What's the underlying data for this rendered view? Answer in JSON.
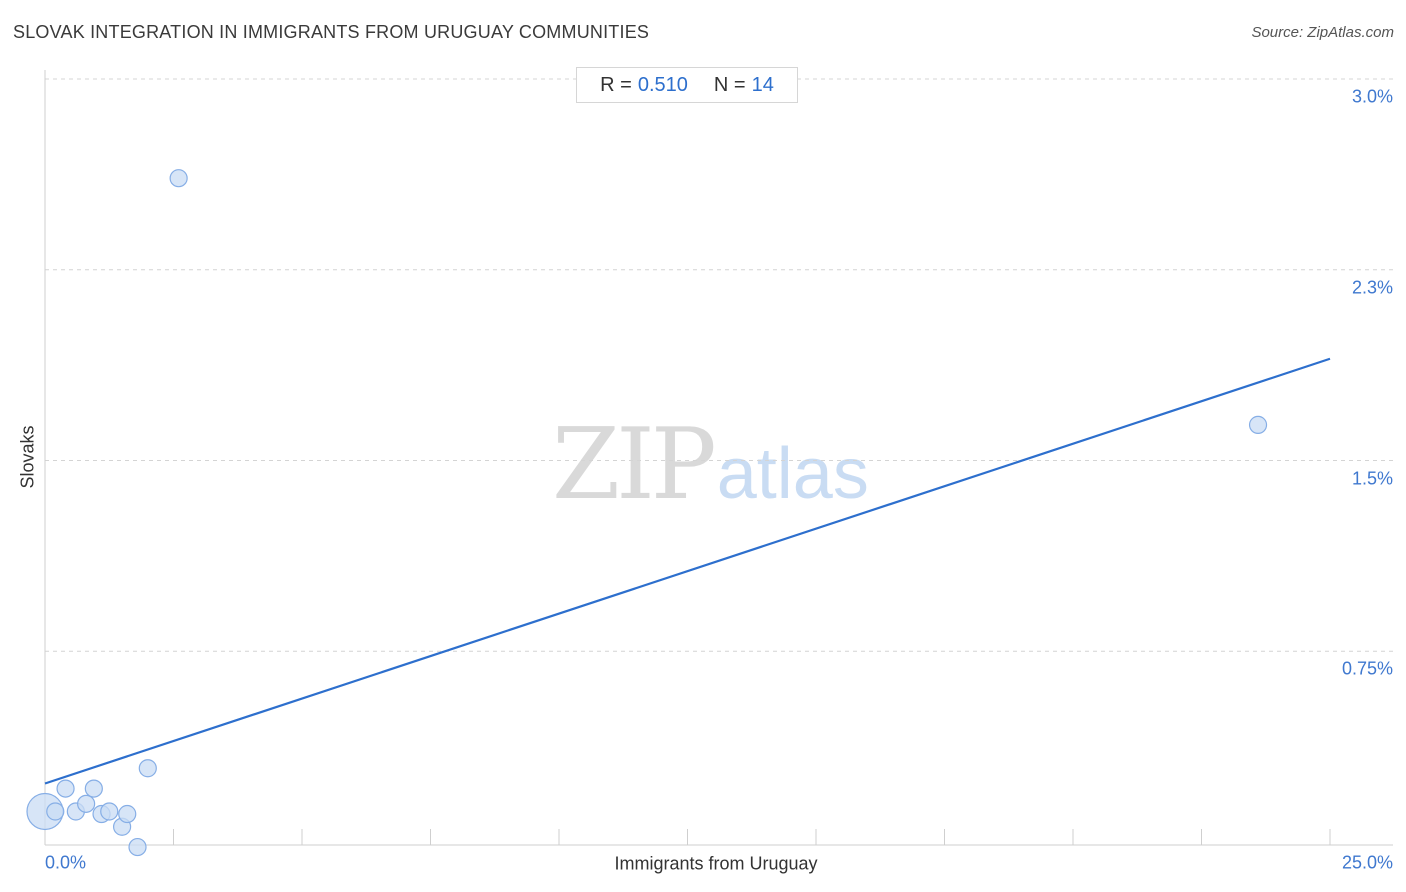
{
  "header": {
    "title": "SLOVAK INTEGRATION IN IMMIGRANTS FROM URUGUAY COMMUNITIES",
    "source": "Source: ZipAtlas.com"
  },
  "stats": {
    "r_label": "R = ",
    "r_value": "0.510",
    "n_label": "N = ",
    "n_value": "14"
  },
  "watermark": {
    "zip": "ZIP",
    "atlas": "atlas"
  },
  "colors": {
    "trend_line": "#2d6fcd",
    "point_fill": "#c9dcf4",
    "point_stroke": "#86aee6",
    "grid": "#d4d4d4",
    "tick_label": "#3f78cf"
  },
  "chart_data": {
    "type": "scatter",
    "title": "SLOVAK INTEGRATION IN IMMIGRANTS FROM URUGUAY COMMUNITIES",
    "xlabel": "Immigrants from Uruguay",
    "ylabel": "Slovaks",
    "xlim": [
      0,
      25
    ],
    "ylim": [
      0,
      3.0
    ],
    "x_tick_labels": [
      "0.0%",
      "25.0%"
    ],
    "y_ticks": [
      {
        "value": 3.0,
        "label": "3.0%"
      },
      {
        "value": 2.25,
        "label": "2.3%"
      },
      {
        "value": 1.5,
        "label": "1.5%"
      },
      {
        "value": 0.75,
        "label": "0.75%"
      }
    ],
    "grid": "horizontal dashed",
    "points": [
      {
        "x": 0.0,
        "y": 0.12,
        "size": "large"
      },
      {
        "x": 0.2,
        "y": 0.12,
        "size": "normal"
      },
      {
        "x": 0.4,
        "y": 0.21,
        "size": "normal"
      },
      {
        "x": 0.6,
        "y": 0.12,
        "size": "normal"
      },
      {
        "x": 0.8,
        "y": 0.15,
        "size": "normal"
      },
      {
        "x": 0.95,
        "y": 0.21,
        "size": "normal"
      },
      {
        "x": 1.1,
        "y": 0.11,
        "size": "normal"
      },
      {
        "x": 1.25,
        "y": 0.12,
        "size": "normal"
      },
      {
        "x": 1.5,
        "y": 0.06,
        "size": "normal"
      },
      {
        "x": 1.6,
        "y": 0.11,
        "size": "normal"
      },
      {
        "x": 1.8,
        "y": -0.02,
        "size": "normal"
      },
      {
        "x": 2.0,
        "y": 0.29,
        "size": "normal"
      },
      {
        "x": 2.6,
        "y": 2.61,
        "size": "normal"
      },
      {
        "x": 23.6,
        "y": 1.64,
        "size": "normal"
      }
    ],
    "trend_line": {
      "x": [
        0,
        25
      ],
      "y": [
        0.23,
        1.9
      ]
    },
    "r": 0.51,
    "n": 14
  }
}
